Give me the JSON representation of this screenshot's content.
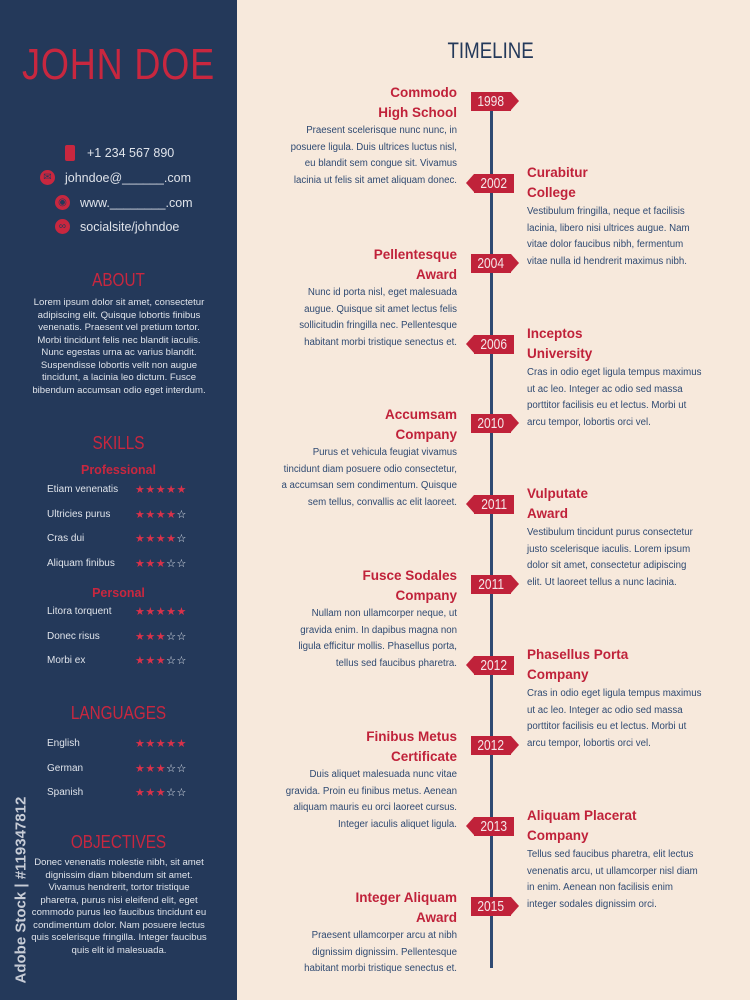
{
  "name": "JOHN DOE",
  "contact": {
    "phone": "+1 234 567 890",
    "email": "johndoe@______.com",
    "web": "www.________.com",
    "social": "socialsite/johndoe"
  },
  "about": {
    "title": "ABOUT",
    "text": "Lorem ipsum dolor sit amet, consectetur adipiscing elit. Quisque lobortis finibus venenatis. Praesent vel pretium tortor. Morbi tincidunt felis nec blandit iaculis. Nunc egestas urna ac varius blandit. Suspendisse lobortis velit non augue tincidunt, a lacinia leo dictum. Fusce bibendum accumsan odio eget interdum."
  },
  "skills": {
    "title": "SKILLS",
    "professional_title": "Professional",
    "professional": [
      {
        "label": "Etiam venenatis",
        "stars": "★★★★★",
        "off": ""
      },
      {
        "label": "Ultricies purus",
        "stars": "★★★★",
        "off": "☆"
      },
      {
        "label": "Cras dui",
        "stars": "★★★★",
        "off": "☆"
      },
      {
        "label": "Aliquam finibus",
        "stars": "★★★",
        "off": "☆☆"
      }
    ],
    "personal_title": "Personal",
    "personal": [
      {
        "label": "Litora torquent",
        "stars": "★★★★★",
        "off": ""
      },
      {
        "label": "Donec risus",
        "stars": "★★★",
        "off": "☆☆"
      },
      {
        "label": "Morbi ex",
        "stars": "★★★",
        "off": "☆☆"
      }
    ]
  },
  "languages": {
    "title": "LANGUAGES",
    "items": [
      {
        "label": "English",
        "stars": "★★★★★",
        "off": ""
      },
      {
        "label": "German",
        "stars": "★★★",
        "off": "☆☆"
      },
      {
        "label": "Spanish",
        "stars": "★★★",
        "off": "☆☆"
      }
    ]
  },
  "objectives": {
    "title": "OBJECTIVES",
    "text": "Donec venenatis molestie nibh, sit amet dignissim diam bibendum sit amet. Vivamus hendrerit, tortor tristique pharetra, purus nisi eleifend elit, eget commodo purus leo faucibus tincidunt eu condimentum dolor. Nam posuere lectus quis scelerisque fringilla. Integer faucibus quis elit id malesuada."
  },
  "watermark": "Adobe Stock | #119347812",
  "timeline": {
    "title": "TIMELINE",
    "entries": [
      {
        "year": "1998",
        "title": "Commodo\nHigh School",
        "text": "Praesent scelerisque nunc nunc, in\nposuere ligula. Duis ultrices luctus nisl,\neu blandit sem congue sit. Vivamus\nlacinia ut felis sit amet aliquam donec."
      },
      {
        "year": "2002",
        "title": "Curabitur\nCollege",
        "text": "Vestibulum fringilla, neque et facilisis\nlacinia, libero nisi ultrices augue. Nam\nvitae dolor faucibus nibh, fermentum\nvitae nulla id hendrerit maximus nibh."
      },
      {
        "year": "2004",
        "title": "Pellentesque\nAward",
        "text": "Nunc id porta nisl, eget malesuada\naugue. Quisque sit amet lectus felis\nsollicitudin fringilla nec. Pellentesque\nhabitant morbi tristique senectus et."
      },
      {
        "year": "2006",
        "title": "Inceptos\nUniversity",
        "text": "Cras in odio eget ligula tempus maximus\nut ac leo. Integer ac odio sed massa\nporttitor facilisis eu et lectus. Morbi ut\narcu tempor, lobortis orci vel."
      },
      {
        "year": "2010",
        "title": "Accumsam\nCompany",
        "text": "Purus et vehicula feugiat vivamus\ntincidunt diam posuere odio consectetur,\na accumsan sem condimentum. Quisque\nsem tellus, convallis ac elit laoreet."
      },
      {
        "year": "2011",
        "title": "Vulputate\nAward",
        "text": "Vestibulum tincidunt purus consectetur\njusto scelerisque iaculis. Lorem ipsum\ndolor sit amet, consectetur adipiscing\nelit. Ut laoreet tellus a nunc lacinia."
      },
      {
        "year": "2011",
        "title": "Fusce Sodales\nCompany",
        "text": "Nullam non ullamcorper neque, ut\ngravida enim. In dapibus magna non\nligula efficitur mollis. Phasellus porta,\ntellus sed faucibus pharetra."
      },
      {
        "year": "2012",
        "title": "Phasellus Porta\nCompany",
        "text": "Cras in odio eget ligula tempus maximus\nut ac leo. Integer ac odio sed massa\nporttitor facilisis eu et lectus. Morbi ut\narcu tempor, lobortis orci vel."
      },
      {
        "year": "2012",
        "title": "Finibus Metus\nCertificate",
        "text": "Duis aliquet malesuada nunc vitae\ngravida. Proin eu finibus metus. Aenean\naliquam mauris eu orci laoreet cursus.\nInteger iaculis aliquet ligula."
      },
      {
        "year": "2013",
        "title": "Aliquam Placerat\nCompany",
        "text": "Tellus sed faucibus pharetra, elit lectus\nvenenatis arcu, ut ullamcorper nisl diam\nin enim. Aenean non facilisis enim\ninteger sodales dignissim orci."
      },
      {
        "year": "2015",
        "title": "Integer Aliquam\nAward",
        "text": "Praesent ullamcorper arcu at nibh\ndignissim dignissim. Pellentesque\nhabitant morbi tristique senectus et."
      }
    ]
  },
  "colors": {
    "sidebar": "#24395a",
    "accent": "#c0223a",
    "background": "#f7e9dc"
  }
}
